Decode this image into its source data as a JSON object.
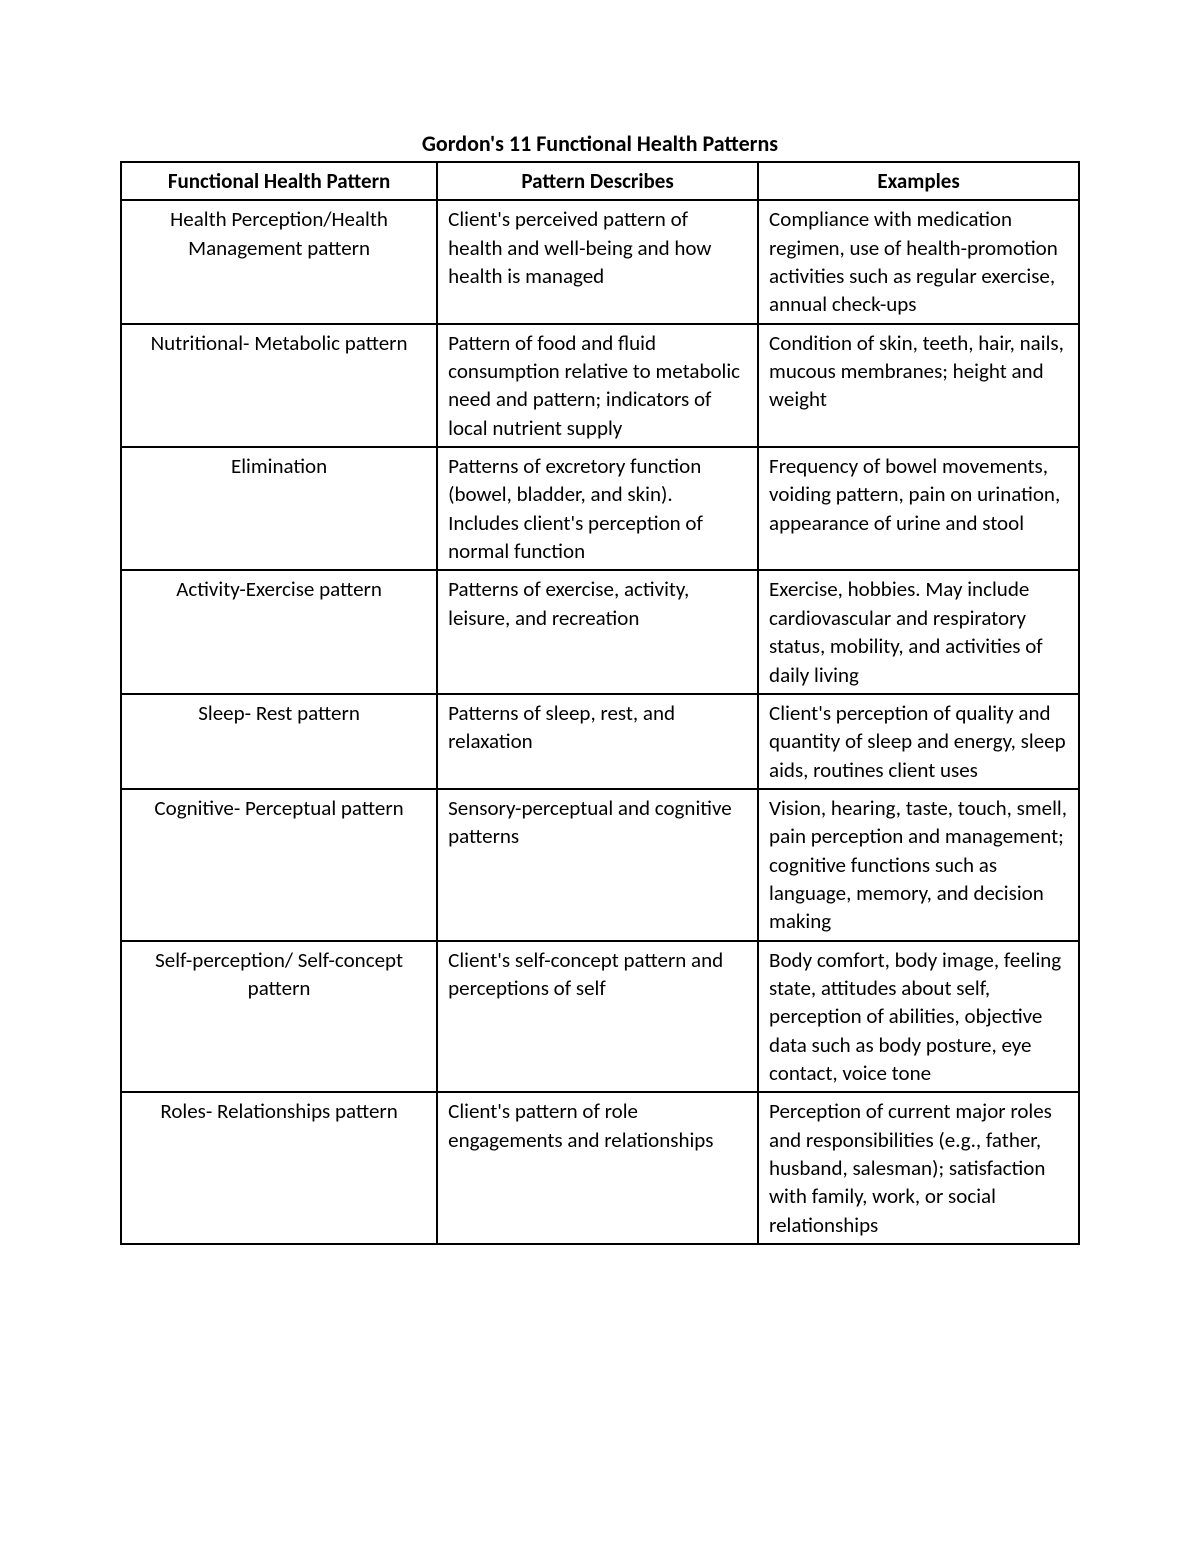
{
  "title": "Gordon's 11 Functional Health Patterns",
  "table": {
    "type": "table",
    "background_color": "#ffffff",
    "border_color": "#000000",
    "border_width": 2,
    "font_family": "Calibri",
    "title_fontsize": 22,
    "cell_fontsize": 21,
    "header_align": "center",
    "column_count": 3,
    "column_widths_pct": [
      33,
      33.5,
      33.5
    ],
    "columns": [
      {
        "key": "pattern",
        "label": "Functional Health Pattern",
        "align": "center"
      },
      {
        "key": "describes",
        "label": "Pattern Describes",
        "align": "left"
      },
      {
        "key": "examples",
        "label": "Examples",
        "align": "left"
      }
    ],
    "rows": [
      {
        "pattern": "Health Perception/Health Management pattern",
        "describes": "Client's perceived pattern of health and well-being and how health is managed",
        "examples": "Compliance with medication regimen, use of health-promotion activities such as regular exercise, annual check-ups"
      },
      {
        "pattern": "Nutritional- Metabolic pattern",
        "describes": "Pattern of food and fluid consumption relative to metabolic need and pattern; indicators of local nutrient supply",
        "examples": "Condition of skin, teeth, hair, nails, mucous membranes; height and weight"
      },
      {
        "pattern": "Elimination",
        "describes": "Patterns of excretory function (bowel, bladder, and skin). Includes client's perception of normal function",
        "examples": "Frequency of bowel movements, voiding pattern, pain on urination, appearance of urine and stool"
      },
      {
        "pattern": "Activity-Exercise pattern",
        "describes": "Patterns of exercise, activity, leisure, and recreation",
        "examples": "Exercise, hobbies.  May include cardiovascular and respiratory status, mobility, and activities of daily living"
      },
      {
        "pattern": "Sleep- Rest pattern",
        "describes": "Patterns of sleep, rest, and relaxation",
        "examples": "Client's perception of quality and quantity of sleep and energy, sleep aids, routines client uses"
      },
      {
        "pattern": "Cognitive- Perceptual pattern",
        "describes": "Sensory-perceptual and cognitive patterns",
        "examples": "Vision, hearing, taste, touch, smell, pain perception and management; cognitive functions such as language, memory, and decision making"
      },
      {
        "pattern": "Self-perception/ Self-concept pattern",
        "describes": "Client's self-concept pattern and perceptions of self",
        "examples": "Body comfort, body image, feeling state, attitudes about self, perception of abilities, objective data such as body posture, eye contact, voice tone"
      },
      {
        "pattern": "Roles- Relationships pattern",
        "describes": "Client's pattern of role engagements and relationships",
        "examples": "Perception of current major roles and responsibilities (e.g., father, husband, salesman); satisfaction with family, work, or social relationships"
      }
    ]
  }
}
